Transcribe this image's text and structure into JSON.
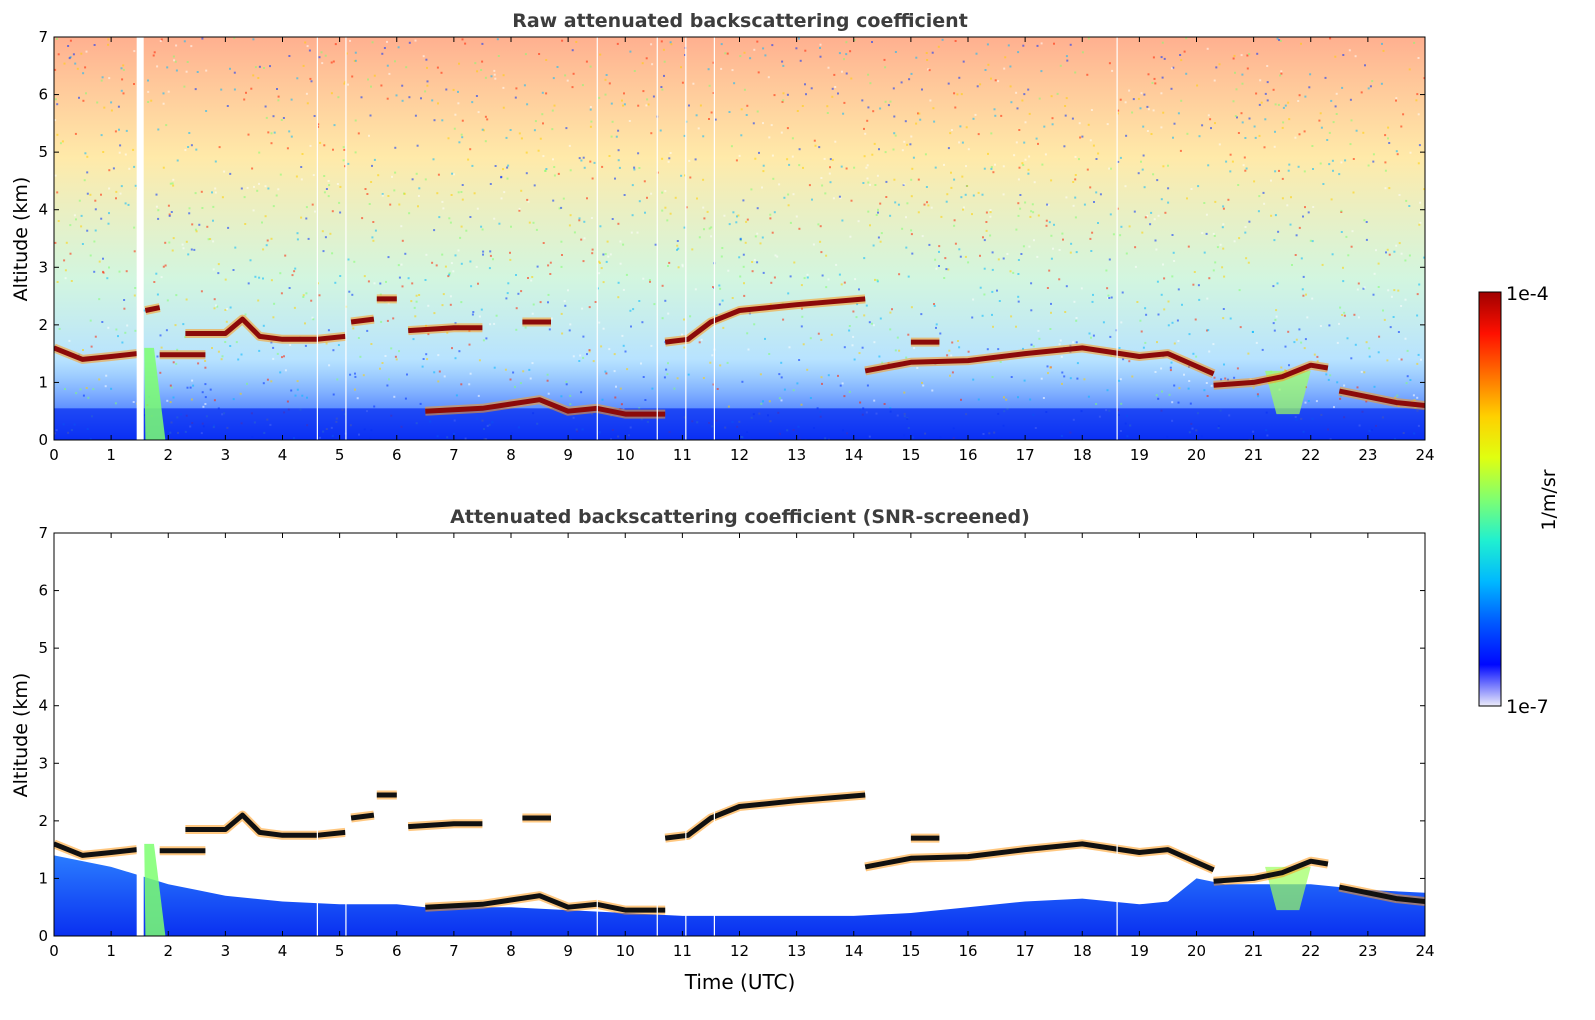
{
  "chart_data": [
    {
      "type": "heatmap",
      "title": "Raw attenuated backscattering coefficient",
      "xlabel": "",
      "ylabel": "Altitude (km)",
      "xlim": [
        0,
        24
      ],
      "ylim": [
        0,
        7
      ],
      "xticks": [
        "0",
        "1",
        "2",
        "3",
        "4",
        "5",
        "6",
        "7",
        "8",
        "9",
        "10",
        "11",
        "12",
        "13",
        "14",
        "15",
        "16",
        "17",
        "18",
        "19",
        "20",
        "21",
        "22",
        "23",
        "24"
      ],
      "yticks": [
        "0",
        "1",
        "2",
        "3",
        "4",
        "5",
        "6",
        "7"
      ],
      "grid": false,
      "noise_background": true,
      "data_gaps_time": [
        1.5
      ],
      "thin_gaps_time": [
        4.6,
        5.1,
        9.5,
        10.55,
        11.05,
        11.55,
        18.6
      ],
      "cloud_layers": [
        {
          "t": [
            0.0,
            0.5,
            1.0,
            1.45
          ],
          "alt": [
            1.6,
            1.4,
            1.45,
            1.5
          ]
        },
        {
          "t": [
            1.85,
            2.65
          ],
          "alt": [
            1.48,
            1.48
          ]
        },
        {
          "t": [
            1.6,
            1.85
          ],
          "alt": [
            2.25,
            2.3
          ]
        },
        {
          "t": [
            2.3,
            3.0,
            3.3,
            3.6,
            4.0,
            4.6,
            5.1
          ],
          "alt": [
            1.85,
            1.85,
            2.1,
            1.8,
            1.75,
            1.75,
            1.8
          ]
        },
        {
          "t": [
            5.2,
            5.6
          ],
          "alt": [
            2.05,
            2.1
          ]
        },
        {
          "t": [
            5.65,
            6.0
          ],
          "alt": [
            2.45,
            2.45
          ]
        },
        {
          "t": [
            6.2,
            7.0,
            7.5
          ],
          "alt": [
            1.9,
            1.95,
            1.95
          ]
        },
        {
          "t": [
            8.2,
            8.7
          ],
          "alt": [
            2.05,
            2.05
          ]
        },
        {
          "t": [
            10.7,
            11.1,
            11.5,
            12.0,
            13.0,
            14.2
          ],
          "alt": [
            1.7,
            1.75,
            2.05,
            2.25,
            2.35,
            2.45
          ]
        },
        {
          "t": [
            14.2,
            15.0,
            16.0,
            17.0,
            18.0,
            19.0,
            19.5,
            20.3
          ],
          "alt": [
            1.2,
            1.35,
            1.38,
            1.5,
            1.6,
            1.45,
            1.5,
            1.15
          ]
        },
        {
          "t": [
            15.0,
            15.5
          ],
          "alt": [
            1.7,
            1.7
          ]
        },
        {
          "t": [
            20.3,
            21.0,
            21.5,
            22.0,
            22.3
          ],
          "alt": [
            0.95,
            1.0,
            1.1,
            1.3,
            1.25
          ]
        },
        {
          "t": [
            22.5,
            23.0,
            23.5,
            24.0
          ],
          "alt": [
            0.85,
            0.75,
            0.65,
            0.6
          ]
        },
        {
          "t": [
            6.5,
            7.5,
            8.5,
            9.0,
            9.5,
            10.0,
            10.7
          ],
          "alt": [
            0.5,
            0.55,
            0.7,
            0.5,
            0.55,
            0.45,
            0.45
          ]
        }
      ]
    },
    {
      "type": "heatmap",
      "title": "Attenuated backscattering coefficient (SNR-screened)",
      "xlabel": "Time (UTC)",
      "ylabel": "Altitude (km)",
      "xlim": [
        0,
        24
      ],
      "ylim": [
        0,
        7
      ],
      "xticks": [
        "0",
        "1",
        "2",
        "3",
        "4",
        "5",
        "6",
        "7",
        "8",
        "9",
        "10",
        "11",
        "12",
        "13",
        "14",
        "15",
        "16",
        "17",
        "18",
        "19",
        "20",
        "21",
        "22",
        "23",
        "24"
      ],
      "yticks": [
        "0",
        "1",
        "2",
        "3",
        "4",
        "5",
        "6",
        "7"
      ],
      "grid": false,
      "noise_background": false,
      "data_gaps_time": [
        1.5
      ],
      "thin_gaps_time": [
        4.6,
        5.1,
        9.5,
        10.55,
        11.05,
        11.55,
        18.6
      ],
      "boundary_layer_top": {
        "t": [
          0,
          1,
          1.5,
          2,
          3,
          4,
          5,
          6,
          6.5,
          7,
          8,
          9,
          10,
          11,
          12,
          13,
          14,
          15,
          16,
          17,
          18,
          19,
          19.5,
          20,
          20.5,
          21,
          22,
          23,
          24
        ],
        "alt": [
          1.4,
          1.2,
          1.05,
          0.9,
          0.7,
          0.6,
          0.55,
          0.55,
          0.5,
          0.5,
          0.5,
          0.45,
          0.4,
          0.35,
          0.35,
          0.35,
          0.35,
          0.4,
          0.5,
          0.6,
          0.65,
          0.55,
          0.6,
          1.0,
          0.9,
          0.9,
          0.9,
          0.8,
          0.75
        ]
      },
      "cloud_layers": [
        {
          "t": [
            0.0,
            0.5,
            1.0,
            1.45
          ],
          "alt": [
            1.6,
            1.4,
            1.45,
            1.5
          ]
        },
        {
          "t": [
            1.85,
            2.65
          ],
          "alt": [
            1.48,
            1.48
          ]
        },
        {
          "t": [
            2.3,
            3.0,
            3.3,
            3.6,
            4.0,
            4.6,
            5.1
          ],
          "alt": [
            1.85,
            1.85,
            2.1,
            1.8,
            1.75,
            1.75,
            1.8
          ]
        },
        {
          "t": [
            5.2,
            5.6
          ],
          "alt": [
            2.05,
            2.1
          ]
        },
        {
          "t": [
            5.65,
            6.0
          ],
          "alt": [
            2.45,
            2.45
          ]
        },
        {
          "t": [
            6.2,
            7.0,
            7.5
          ],
          "alt": [
            1.9,
            1.95,
            1.95
          ]
        },
        {
          "t": [
            8.2,
            8.7
          ],
          "alt": [
            2.05,
            2.05
          ]
        },
        {
          "t": [
            10.7,
            11.1,
            11.5,
            12.0,
            13.0,
            14.2
          ],
          "alt": [
            1.7,
            1.75,
            2.05,
            2.25,
            2.35,
            2.45
          ]
        },
        {
          "t": [
            14.2,
            15.0,
            16.0,
            17.0,
            18.0,
            19.0,
            19.5,
            20.3
          ],
          "alt": [
            1.2,
            1.35,
            1.38,
            1.5,
            1.6,
            1.45,
            1.5,
            1.15
          ]
        },
        {
          "t": [
            15.0,
            15.5
          ],
          "alt": [
            1.7,
            1.7
          ]
        },
        {
          "t": [
            20.3,
            21.0,
            21.5,
            22.0,
            22.3
          ],
          "alt": [
            0.95,
            1.0,
            1.1,
            1.3,
            1.25
          ]
        },
        {
          "t": [
            22.5,
            23.0,
            23.5,
            24.0
          ],
          "alt": [
            0.85,
            0.75,
            0.65,
            0.6
          ]
        },
        {
          "t": [
            6.5,
            7.5,
            8.5,
            9.0,
            9.5,
            10.0,
            10.7
          ],
          "alt": [
            0.5,
            0.55,
            0.7,
            0.5,
            0.55,
            0.45,
            0.45
          ]
        }
      ]
    }
  ],
  "colorbar": {
    "label": "1/m/sr",
    "max_label": "1e-4",
    "min_label": "1e-7",
    "scale": "log",
    "range": [
      1e-07,
      0.0001
    ],
    "colormap": [
      "#ececfa",
      "#0008ff",
      "#0058ff",
      "#00b8ff",
      "#20f0d0",
      "#80ff70",
      "#e0ff10",
      "#ffd000",
      "#ff7000",
      "#ff1000",
      "#a00000"
    ]
  },
  "colors": {
    "cloud_core": "#8b0a0a",
    "cloud_core_screened": "#111111",
    "boundary_layer": "#0a3ff2",
    "axis": "#000000",
    "title": "#3d3d3d"
  }
}
